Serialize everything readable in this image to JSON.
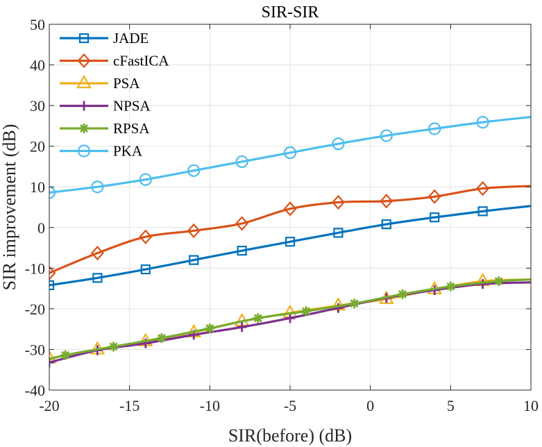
{
  "chart_data": {
    "type": "line",
    "title": "SIR-SIR",
    "xlabel": "SIR(before) (dB)",
    "ylabel": "SIR improvement (dB)",
    "xlim": [
      -20,
      10
    ],
    "ylim": [
      -40,
      50
    ],
    "xticks": [
      -20,
      -15,
      -10,
      -5,
      0,
      5,
      10
    ],
    "yticks": [
      -40,
      -30,
      -20,
      -10,
      0,
      10,
      20,
      30,
      40,
      50
    ],
    "xtick_labels": [
      "-20",
      "-15",
      "-10",
      "-5",
      "0",
      "5",
      "10"
    ],
    "ytick_labels": [
      "-40",
      "-30",
      "-20",
      "-10",
      "0",
      "10",
      "20",
      "30",
      "40",
      "50"
    ],
    "grid": true,
    "legend_position": "top-left",
    "series": [
      {
        "name": "JADE",
        "color": "#0072BD",
        "marker": "square",
        "x": [
          -20,
          -17,
          -14,
          -11,
          -8,
          -5,
          -2,
          1,
          4,
          7,
          10
        ],
        "y": [
          -14.2,
          -12.4,
          -10.3,
          -8.0,
          -5.7,
          -3.5,
          -1.3,
          0.8,
          2.5,
          4.0,
          5.3
        ],
        "marker_x": [
          -20,
          -17,
          -14,
          -11,
          -8,
          -5,
          -2,
          1,
          4,
          7
        ]
      },
      {
        "name": "cFastICA",
        "color": "#D95319",
        "marker": "diamond",
        "x": [
          -20,
          -17,
          -14,
          -11,
          -8,
          -5,
          -2,
          1,
          4,
          7,
          10
        ],
        "y": [
          -11.2,
          -6.3,
          -2.3,
          -0.8,
          1.0,
          4.6,
          6.2,
          6.5,
          7.6,
          9.6,
          10.2
        ],
        "marker_x": [
          -20,
          -17,
          -14,
          -11,
          -8,
          -5,
          -2,
          1,
          4,
          7
        ]
      },
      {
        "name": "PSA",
        "color": "#EDB120",
        "marker": "triangle",
        "x": [
          -20,
          -17,
          -14,
          -11,
          -8,
          -5,
          -2,
          1,
          4,
          7,
          10
        ],
        "y": [
          -32.2,
          -30.0,
          -28.0,
          -25.8,
          -23.1,
          -21.0,
          -19.2,
          -17.6,
          -15.2,
          -13.2,
          -12.8
        ],
        "marker_x": [
          -20,
          -17,
          -14,
          -11,
          -8,
          -5,
          -2,
          1,
          4,
          7
        ]
      },
      {
        "name": "NPSA",
        "color": "#7E2F8E",
        "marker": "plus",
        "x": [
          -20,
          -17,
          -14,
          -11,
          -8,
          -5,
          -2,
          1,
          4,
          7,
          10
        ],
        "y": [
          -33.2,
          -30.2,
          -28.5,
          -26.4,
          -24.5,
          -22.3,
          -19.8,
          -17.3,
          -15.4,
          -13.9,
          -13.5
        ],
        "marker_x": [
          -20,
          -17,
          -14,
          -11,
          -8,
          -5,
          -2,
          1,
          4,
          7
        ]
      },
      {
        "name": "RPSA",
        "color": "#77AC30",
        "marker": "asterisk",
        "x": [
          -20,
          -19,
          -16,
          -13,
          -10,
          -7,
          -4,
          -1,
          2,
          5,
          8,
          10
        ],
        "y": [
          -32.5,
          -31.4,
          -29.3,
          -27.2,
          -24.8,
          -22.3,
          -20.6,
          -18.7,
          -16.4,
          -14.5,
          -13.2,
          -12.8
        ],
        "marker_x": [
          -19,
          -16,
          -13,
          -10,
          -7,
          -4,
          -1,
          2,
          5,
          8
        ]
      },
      {
        "name": "PKA",
        "color": "#4DBEEE",
        "marker": "circle",
        "x": [
          -20,
          -17,
          -14,
          -11,
          -8,
          -5,
          -2,
          1,
          4,
          7,
          10
        ],
        "y": [
          8.6,
          10.0,
          11.8,
          14.0,
          16.2,
          18.4,
          20.6,
          22.6,
          24.3,
          25.9,
          27.2
        ],
        "marker_x": [
          -20,
          -17,
          -14,
          -11,
          -8,
          -5,
          -2,
          1,
          4,
          7
        ]
      }
    ]
  }
}
